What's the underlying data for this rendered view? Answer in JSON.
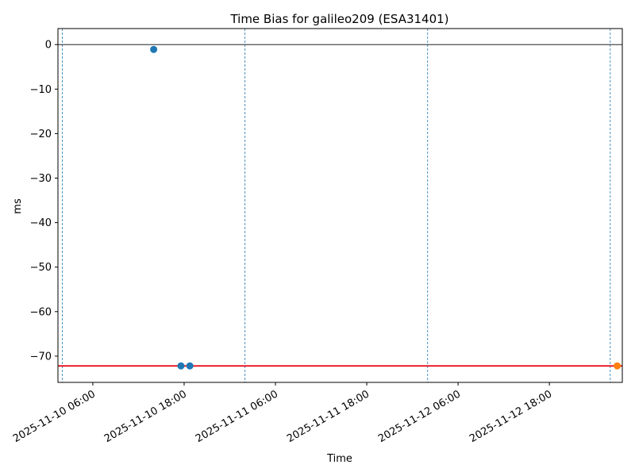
{
  "chart_data": {
    "type": "scatter",
    "title": "Time Bias for galileo209 (ESA31401)",
    "xlabel": "Time",
    "ylabel": "ms",
    "xlim": [
      "2025-11-10 01:25",
      "2025-11-13 03:35"
    ],
    "ylim": [
      -75.9,
      3.6
    ],
    "y_ticks": [
      0,
      -10,
      -20,
      -30,
      -40,
      -50,
      -60,
      -70
    ],
    "y_tick_labels": [
      "0",
      "−10",
      "−20",
      "−30",
      "−40",
      "−50",
      "−60",
      "−70"
    ],
    "x_ticks": [
      "2025-11-10 06:00",
      "2025-11-10 18:00",
      "2025-11-11 06:00",
      "2025-11-11 18:00",
      "2025-11-12 06:00",
      "2025-11-12 18:00"
    ],
    "x_tick_labels": [
      "2025-11-10 06:00",
      "2025-11-10 18:00",
      "2025-11-11 06:00",
      "2025-11-11 18:00",
      "2025-11-12 06:00",
      "2025-11-12 18:00"
    ],
    "vertical_lines": [
      "2025-11-10 02:00",
      "2025-11-11 02:00",
      "2025-11-12 02:00",
      "2025-11-13 02:00"
    ],
    "horizontal_lines": [
      {
        "y": 0,
        "color": "#000000"
      },
      {
        "y": -72.2,
        "color": "#e8000b"
      }
    ],
    "series": [
      {
        "color": "#1f77b4",
        "points": [
          {
            "x": "2025-11-10 14:00",
            "y": -1.1
          },
          {
            "x": "2025-11-10 17:35",
            "y": -72.2
          },
          {
            "x": "2025-11-10 18:45",
            "y": -72.2
          }
        ]
      },
      {
        "color": "#ff7f0e",
        "points": [
          {
            "x": "2025-11-13 02:55",
            "y": -72.2
          }
        ]
      }
    ],
    "grid": false,
    "legend": false
  }
}
